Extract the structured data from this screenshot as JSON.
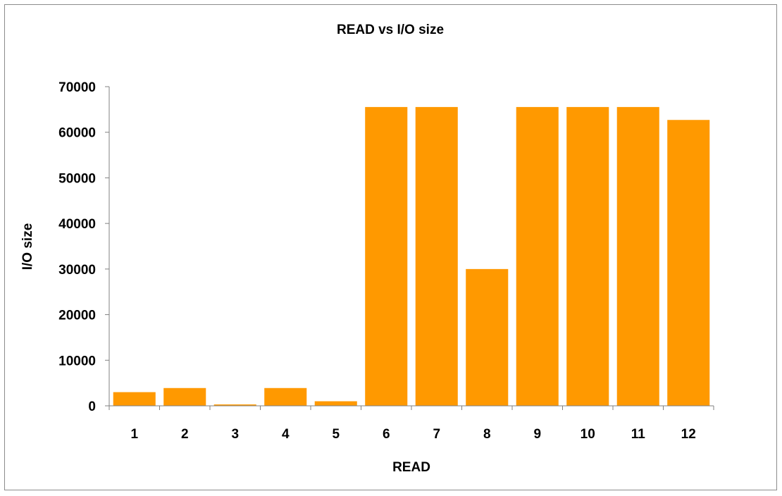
{
  "chart_data": {
    "type": "bar",
    "title": "READ vs I/O size",
    "xlabel": "READ",
    "ylabel": "I/O size",
    "categories": [
      "1",
      "2",
      "3",
      "4",
      "5",
      "6",
      "7",
      "8",
      "9",
      "10",
      "11",
      "12"
    ],
    "values": [
      3000,
      3900,
      300,
      3900,
      1000,
      65536,
      65536,
      30000,
      65536,
      65536,
      65536,
      62700
    ],
    "ylim": [
      0,
      70000
    ],
    "yticks": [
      "0",
      "10000",
      "20000",
      "30000",
      "40000",
      "50000",
      "60000",
      "70000"
    ],
    "ytick_values": [
      0,
      10000,
      20000,
      30000,
      40000,
      50000,
      60000,
      70000
    ],
    "grid": false,
    "legend": "none",
    "bar_color": "#FF9900",
    "axis_color": "#808080"
  }
}
